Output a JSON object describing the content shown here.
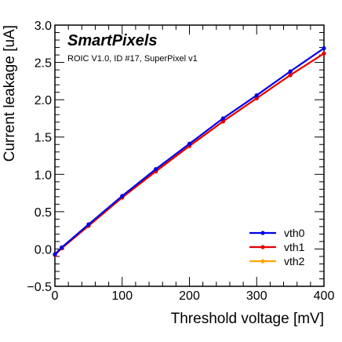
{
  "chart_data": {
    "type": "line",
    "title": "SmartPixels",
    "subtitle": "ROIC V1.0, ID #17, SuperPixel v1",
    "xlabel": "Threshold voltage [mV]",
    "ylabel": "Current leakage [uA]",
    "xlim": [
      0,
      400
    ],
    "ylim": [
      -0.5,
      3.0
    ],
    "xticks": [
      "0",
      "100",
      "200",
      "300",
      "400"
    ],
    "yticks": [
      "−0.5",
      "0.0",
      "0.5",
      "1.0",
      "1.5",
      "2.0",
      "2.5",
      "3.0"
    ],
    "grid": false,
    "legend_position": "bottom-right",
    "series": [
      {
        "name": "vth0",
        "color": "#0000e6",
        "x": [
          0,
          10,
          50,
          100,
          150,
          200,
          250,
          300,
          350,
          400
        ],
        "y": [
          -0.07,
          0.02,
          0.33,
          0.71,
          1.07,
          1.41,
          1.75,
          2.06,
          2.38,
          2.69
        ]
      },
      {
        "name": "vth1",
        "color": "#e60000",
        "x": [
          0,
          10,
          50,
          100,
          150,
          200,
          250,
          300,
          350,
          400
        ],
        "y": [
          -0.08,
          0.01,
          0.31,
          0.69,
          1.04,
          1.38,
          1.71,
          2.02,
          2.33,
          2.62
        ]
      },
      {
        "name": "vth2",
        "color": "#ffa500",
        "x": [
          0,
          10,
          50,
          100,
          150,
          200,
          250,
          300,
          350,
          400
        ],
        "y": [
          -0.08,
          0.01,
          0.31,
          0.69,
          1.04,
          1.38,
          1.71,
          2.02,
          2.33,
          2.62
        ]
      }
    ]
  }
}
